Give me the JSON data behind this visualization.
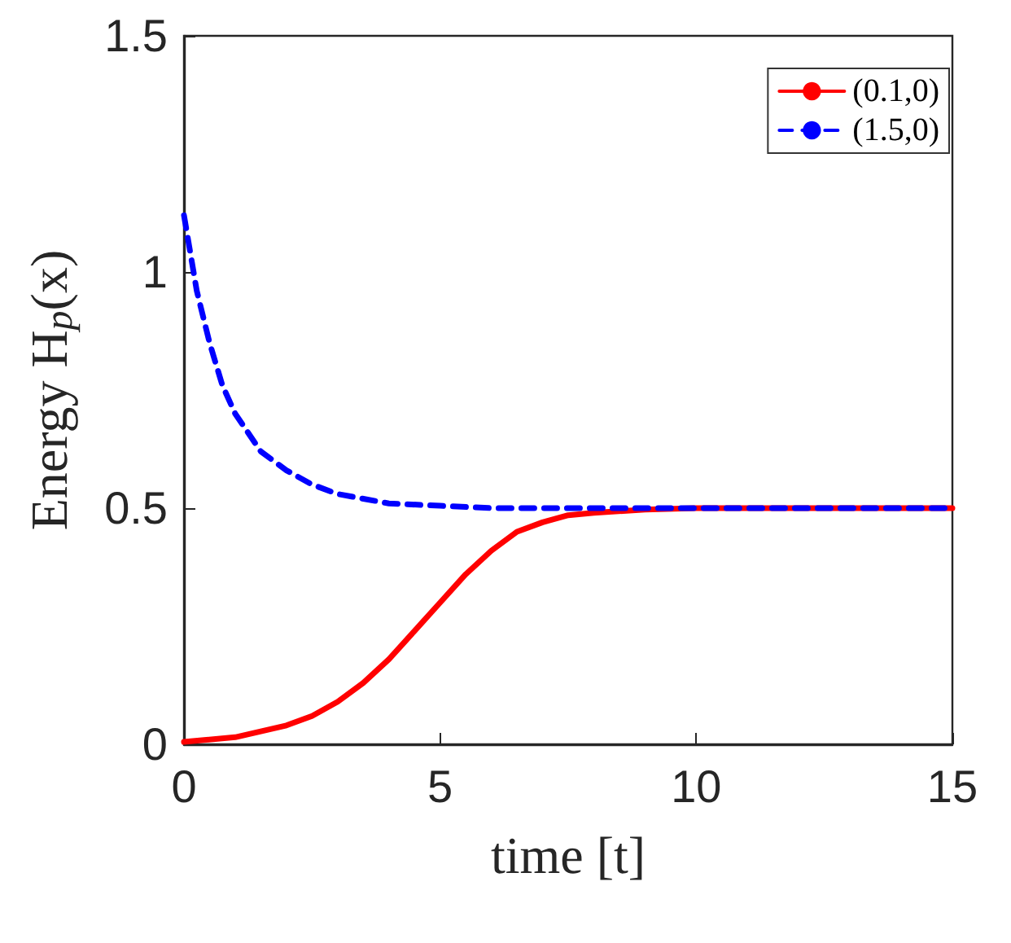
{
  "chart_data": {
    "type": "line",
    "xlabel": "time [t]",
    "ylabel": "Energy H$_{p}$(x)",
    "xlim": [
      0,
      15
    ],
    "xticks": [
      0,
      5,
      10,
      15
    ],
    "ylim": [
      0,
      1.5
    ],
    "yticks": [
      0,
      0.5,
      1,
      1.5
    ],
    "legend": "top right",
    "grid": false,
    "marker": "none",
    "series": [
      {
        "name": "(0.1,0)",
        "color": "#ff0000",
        "line_style": "solid",
        "x": [
          0,
          1,
          2,
          2.5,
          3,
          3.5,
          4,
          4.5,
          5,
          5.5,
          6,
          6.5,
          7,
          7.5,
          8,
          9,
          10,
          12,
          15
        ],
        "values": [
          0.005,
          0.015,
          0.04,
          0.06,
          0.09,
          0.13,
          0.18,
          0.24,
          0.3,
          0.36,
          0.41,
          0.45,
          0.47,
          0.485,
          0.49,
          0.497,
          0.5,
          0.5,
          0.5
        ]
      },
      {
        "name": "(1.5,0)",
        "color": "#0000ff",
        "line_style": "dashed",
        "x": [
          0,
          0.25,
          0.5,
          0.75,
          1,
          1.5,
          2,
          2.5,
          3,
          4,
          5,
          6,
          8,
          10,
          15
        ],
        "values": [
          1.12,
          0.96,
          0.85,
          0.76,
          0.7,
          0.62,
          0.58,
          0.55,
          0.53,
          0.51,
          0.505,
          0.5,
          0.5,
          0.5,
          0.5
        ]
      }
    ]
  }
}
